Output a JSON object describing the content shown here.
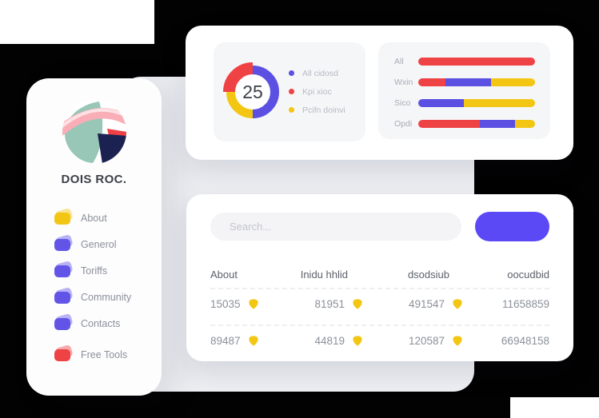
{
  "theme": {
    "purple": "#5b50e1",
    "red": "#ee4245",
    "yellow": "#f3c614",
    "button_purple": "#5a49f5",
    "nav_purple": "#6355e8"
  },
  "sidebar": {
    "brand": "DOIS ROC.",
    "items": [
      {
        "label": "About",
        "color": "#f3c614"
      },
      {
        "label": "Generol",
        "color": "#6355e8"
      },
      {
        "label": "Toriffs",
        "color": "#6355e8"
      },
      {
        "label": "Community",
        "color": "#6355e8"
      },
      {
        "label": "Contacts",
        "color": "#6355e8"
      },
      {
        "label": "Free Tools",
        "color": "#ee4245"
      }
    ]
  },
  "chart_data": [
    {
      "type": "donut",
      "center_value": "25",
      "legend_position": "right",
      "segments": [
        {
          "label": "All cidosd",
          "color": "#5b50e1",
          "pct": 50,
          "emphasis": false
        },
        {
          "label": "Pcifn doinvi",
          "color": "#f3c614",
          "pct": 25,
          "emphasis": false
        },
        {
          "label": "Kpi xioc",
          "color": "#ee4245",
          "pct": 25,
          "emphasis": true
        }
      ],
      "legend": [
        {
          "label": "All cidosd",
          "color": "#5b50e1"
        },
        {
          "label": "Kpi xioc",
          "color": "#ee4245"
        },
        {
          "label": "Pcifn doinvi",
          "color": "#f3c614"
        }
      ]
    },
    {
      "type": "stacked-bar-horizontal",
      "unit": "percent",
      "rows": [
        {
          "label": "All",
          "segments": [
            {
              "color": "#ee4245",
              "pct": 100
            }
          ]
        },
        {
          "label": "Wxin",
          "segments": [
            {
              "color": "#ee4245",
              "pct": 23
            },
            {
              "color": "#5b50e1",
              "pct": 39
            },
            {
              "color": "#f3c614",
              "pct": 38
            }
          ]
        },
        {
          "label": "Sico",
          "segments": [
            {
              "color": "#5b50e1",
              "pct": 39
            },
            {
              "color": "#f3c614",
              "pct": 61
            }
          ]
        },
        {
          "label": "Opdi",
          "segments": [
            {
              "color": "#ee4245",
              "pct": 53
            },
            {
              "color": "#5b50e1",
              "pct": 30
            },
            {
              "color": "#f3c614",
              "pct": 17
            }
          ]
        }
      ]
    }
  ],
  "search": {
    "placeholder": "Search..."
  },
  "table": {
    "headers": [
      "About",
      "Inidu hhlid",
      "dsodsiub",
      "oocudbid"
    ],
    "rows": [
      {
        "cells": [
          {
            "value": "15035",
            "icon": true
          },
          {
            "value": "81951",
            "icon": true
          },
          {
            "value": "491547",
            "icon": true
          },
          {
            "value": "11658859",
            "icon": false
          }
        ]
      },
      {
        "cells": [
          {
            "value": "89487",
            "icon": true
          },
          {
            "value": "44819",
            "icon": true
          },
          {
            "value": "120587",
            "icon": true
          },
          {
            "value": "66948158",
            "icon": false
          }
        ]
      }
    ]
  }
}
